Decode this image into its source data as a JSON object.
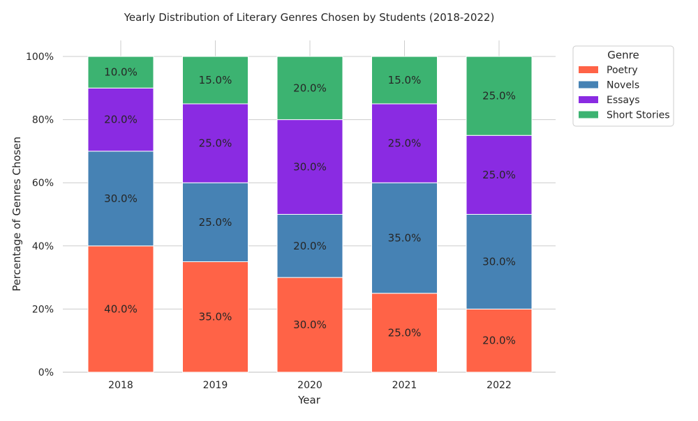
{
  "chart_data": {
    "type": "bar",
    "stacked": true,
    "title": "Yearly Distribution of Literary Genres Chosen by Students (2018-2022)",
    "xlabel": "Year",
    "ylabel": "Percentage of Genres Chosen",
    "categories": [
      "2018",
      "2019",
      "2020",
      "2021",
      "2022"
    ],
    "ylim": [
      0,
      100
    ],
    "yticks": [
      0,
      20,
      40,
      60,
      80,
      100
    ],
    "ytick_labels": [
      "0%",
      "20%",
      "40%",
      "60%",
      "80%",
      "100%"
    ],
    "grid": true,
    "legend": {
      "title": "Genre",
      "placement": "outside top-right"
    },
    "series": [
      {
        "name": "Poetry",
        "color": "#ff6347",
        "values": [
          40,
          35,
          30,
          25,
          20
        ],
        "labels": [
          "40.0%",
          "35.0%",
          "30.0%",
          "25.0%",
          "20.0%"
        ]
      },
      {
        "name": "Novels",
        "color": "#4682b4",
        "values": [
          30,
          25,
          20,
          35,
          30
        ],
        "labels": [
          "30.0%",
          "25.0%",
          "20.0%",
          "35.0%",
          "30.0%"
        ]
      },
      {
        "name": "Essays",
        "color": "#8a2be2",
        "values": [
          20,
          25,
          30,
          25,
          25
        ],
        "labels": [
          "20.0%",
          "25.0%",
          "30.0%",
          "25.0%",
          "25.0%"
        ]
      },
      {
        "name": "Short Stories",
        "color": "#3cb371",
        "values": [
          10,
          15,
          20,
          15,
          25
        ],
        "labels": [
          "10.0%",
          "15.0%",
          "20.0%",
          "15.0%",
          "25.0%"
        ]
      }
    ]
  }
}
